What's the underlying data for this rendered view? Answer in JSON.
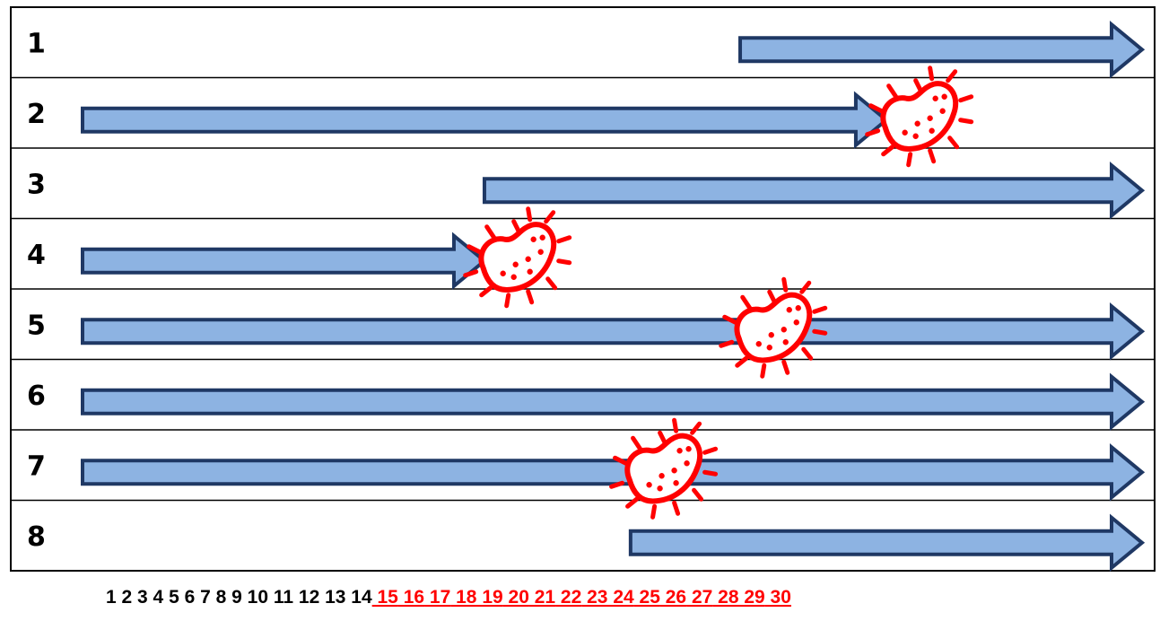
{
  "colors": {
    "arrow_fill": "#8db3e2",
    "arrow_stroke": "#1f3864",
    "bacteria": "#ff0000",
    "highlight_text": "#ff0000",
    "normal_text": "#000000",
    "grid": "#000000"
  },
  "rows": [
    {
      "label": "1",
      "arrow_start_day": 19,
      "arrow_end_day": 30,
      "bacteria_day": null
    },
    {
      "label": "2",
      "arrow_start_day": 1,
      "arrow_end_day": 23,
      "bacteria_day": 24
    },
    {
      "label": "3",
      "arrow_start_day": 12,
      "arrow_end_day": 30,
      "bacteria_day": null
    },
    {
      "label": "4",
      "arrow_start_day": 1,
      "arrow_end_day": 12,
      "bacteria_day": 13
    },
    {
      "label": "5",
      "arrow_start_day": 1,
      "arrow_end_day": 30,
      "bacteria_day": 20
    },
    {
      "label": "6",
      "arrow_start_day": 1,
      "arrow_end_day": 30,
      "bacteria_day": null
    },
    {
      "label": "7",
      "arrow_start_day": 1,
      "arrow_end_day": 30,
      "bacteria_day": 17
    },
    {
      "label": "8",
      "arrow_start_day": 16,
      "arrow_end_day": 30,
      "bacteria_day": null
    }
  ],
  "days": [
    "1",
    "2",
    "3",
    "4",
    "5",
    "6",
    "7",
    "8",
    "9",
    "10",
    "11",
    "12",
    "13",
    "14",
    "15",
    "16",
    "17",
    "18",
    "19",
    "20",
    "21",
    "22",
    "23",
    "24",
    "25",
    "26",
    "27",
    "28",
    "29",
    "30"
  ],
  "highlight_from_day": 15
}
